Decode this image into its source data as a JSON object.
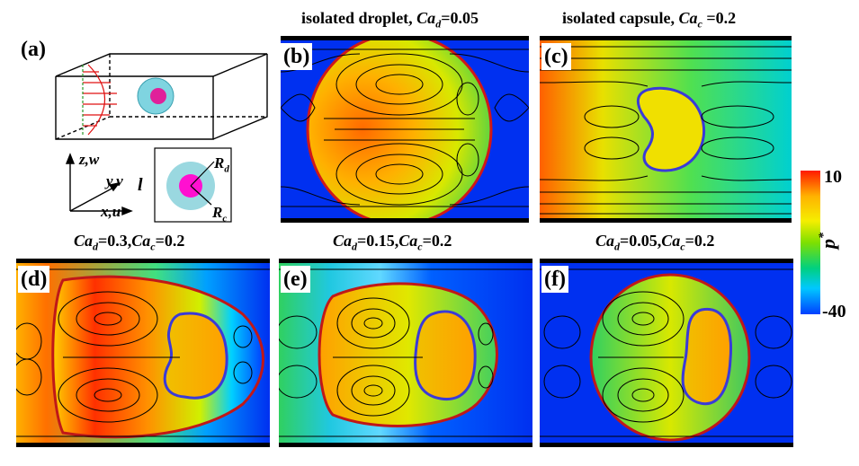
{
  "panel_labels": [
    "(a)",
    "(b)",
    "(c)",
    "(d)",
    "(e)",
    "(f)"
  ],
  "titles": {
    "b": {
      "prefix": "isolated droplet, ",
      "var": "Ca",
      "sub": "d",
      "suffix": "=0.05"
    },
    "c": {
      "prefix": "isolated capsule, ",
      "var": "Ca",
      "sub": "c",
      "suffix": " =0.2"
    },
    "d": {
      "v1": "Ca",
      "s1": "d",
      "e1": "=0.3,",
      "v2": "Ca",
      "s2": "c",
      "e2": "=0.2"
    },
    "e": {
      "v1": "Ca",
      "s1": "d",
      "e1": "=0.15,",
      "v2": "Ca",
      "s2": "c",
      "e2": "=0.2"
    },
    "f": {
      "v1": "Ca",
      "s1": "d",
      "e1": "=0.05,",
      "v2": "Ca",
      "s2": "c",
      "e2": "=0.2"
    }
  },
  "axes_labels": {
    "z": "z,w",
    "y": "y,v",
    "x": "x,u",
    "l": "l",
    "rd": "R",
    "rd_sub": "d",
    "rc": "R",
    "rc_sub": "c"
  },
  "colorbar": {
    "max": "10",
    "min": "-40",
    "variable": "p",
    "superscript": "*",
    "colors": [
      "#ff1a00",
      "#ffb300",
      "#f5ee00",
      "#7fe000",
      "#00d080",
      "#00c8ff",
      "#0040ff"
    ]
  },
  "colors": {
    "droplet_outline": "#cc1a1a",
    "capsule_outline": "#3a3ad8",
    "wall": "#000000",
    "background_field": "#0030f0"
  }
}
